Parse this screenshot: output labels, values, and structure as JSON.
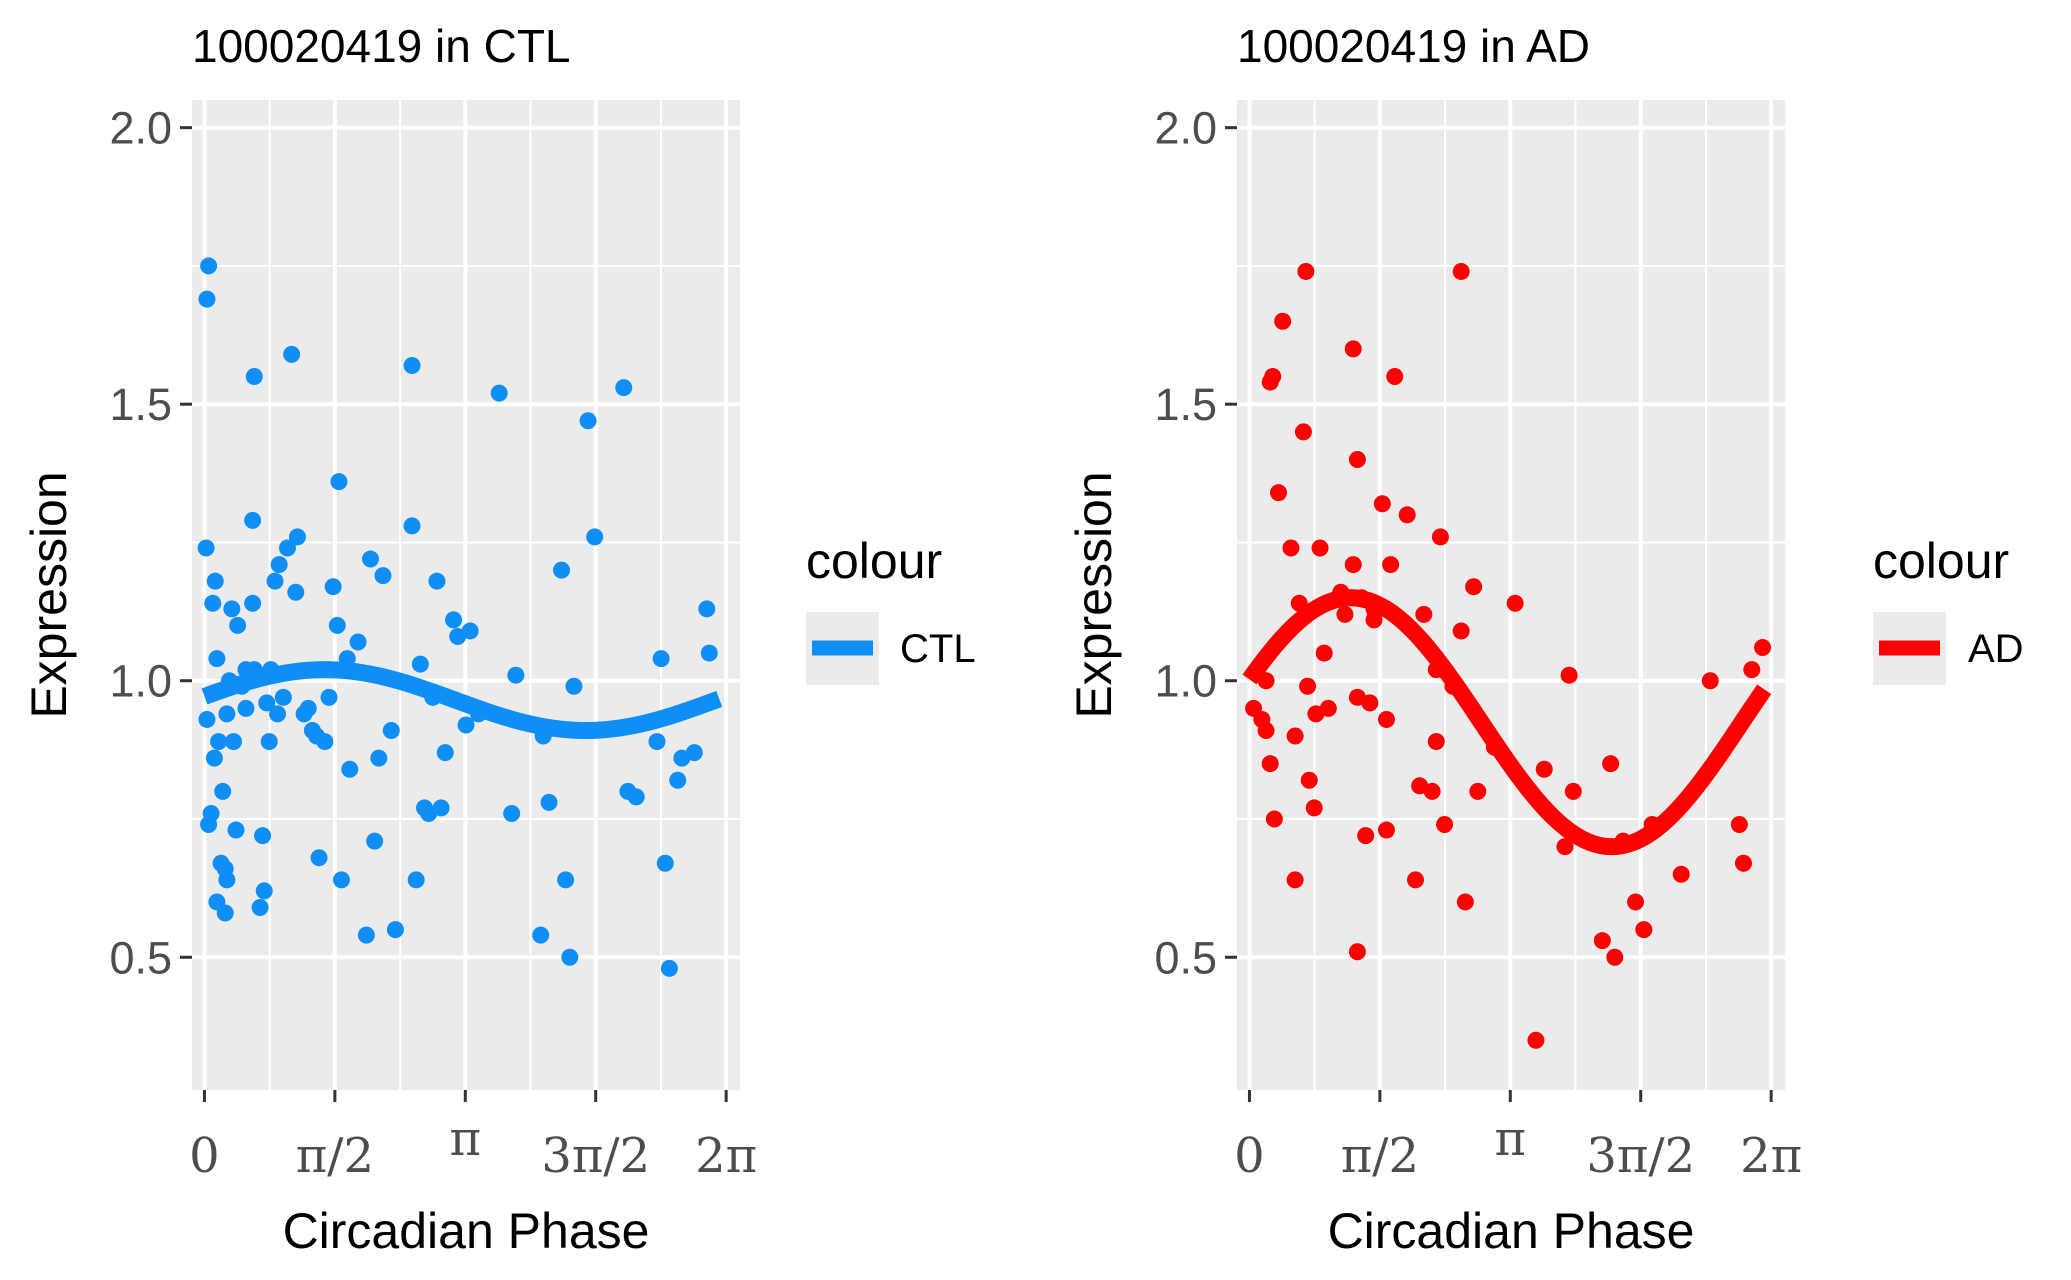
{
  "chart_data": [
    {
      "type": "scatter",
      "title": "100020419 in CTL",
      "xlabel": "Circadian Phase",
      "ylabel": "Expression",
      "xlim": [
        -0.15,
        6.45
      ],
      "ylim": [
        0.26,
        2.05
      ],
      "x_ticks": [
        0,
        1.5708,
        3.1416,
        4.7124,
        6.2832
      ],
      "x_tick_labels": [
        "0",
        "π/2",
        "π",
        "3π/2",
        "2π"
      ],
      "y_ticks": [
        0.5,
        1.0,
        1.5,
        2.0
      ],
      "y_tick_labels": [
        "0.5",
        "1.0",
        "1.5",
        "2.0"
      ],
      "grid": true,
      "legend": {
        "title": "colour",
        "label": "CTL",
        "position": "right"
      },
      "color": "#0f8ff5",
      "fit": {
        "mesor": 0.965,
        "amplitude": 0.055,
        "acrophase": 1.45
      },
      "points": [
        [
          0.05,
          1.75
        ],
        [
          0.03,
          1.69
        ],
        [
          0.02,
          1.24
        ],
        [
          0.03,
          0.93
        ],
        [
          0.05,
          0.74
        ],
        [
          0.08,
          0.76
        ],
        [
          0.1,
          1.14
        ],
        [
          0.13,
          1.18
        ],
        [
          0.15,
          1.04
        ],
        [
          0.17,
          0.89
        ],
        [
          0.12,
          0.86
        ],
        [
          0.2,
          0.67
        ],
        [
          0.15,
          0.6
        ],
        [
          0.25,
          0.58
        ],
        [
          0.27,
          0.64
        ],
        [
          0.25,
          0.66
        ],
        [
          0.22,
          0.8
        ],
        [
          0.27,
          0.94
        ],
        [
          0.3,
          1.0
        ],
        [
          0.33,
          1.13
        ],
        [
          0.35,
          0.89
        ],
        [
          0.38,
          0.73
        ],
        [
          0.4,
          1.1
        ],
        [
          0.45,
          0.99
        ],
        [
          0.5,
          1.02
        ],
        [
          0.5,
          0.95
        ],
        [
          0.58,
          1.14
        ],
        [
          0.58,
          1.29
        ],
        [
          0.6,
          1.55
        ],
        [
          0.6,
          1.02
        ],
        [
          0.67,
          0.59
        ],
        [
          0.7,
          0.72
        ],
        [
          0.72,
          0.62
        ],
        [
          0.75,
          0.96
        ],
        [
          0.78,
          0.89
        ],
        [
          0.8,
          1.02
        ],
        [
          0.85,
          1.18
        ],
        [
          0.88,
          0.94
        ],
        [
          0.9,
          1.21
        ],
        [
          0.95,
          0.97
        ],
        [
          1.0,
          1.24
        ],
        [
          1.05,
          1.59
        ],
        [
          1.1,
          1.16
        ],
        [
          1.12,
          1.26
        ],
        [
          1.2,
          0.94
        ],
        [
          1.25,
          0.95
        ],
        [
          1.3,
          0.91
        ],
        [
          1.35,
          0.9
        ],
        [
          1.38,
          0.68
        ],
        [
          1.45,
          0.89
        ],
        [
          1.5,
          0.97
        ],
        [
          1.55,
          1.17
        ],
        [
          1.6,
          1.1
        ],
        [
          1.62,
          1.36
        ],
        [
          1.65,
          0.64
        ],
        [
          1.72,
          1.04
        ],
        [
          1.75,
          0.84
        ],
        [
          1.85,
          1.07
        ],
        [
          1.95,
          0.54
        ],
        [
          2.0,
          1.22
        ],
        [
          2.05,
          0.71
        ],
        [
          2.1,
          0.86
        ],
        [
          2.15,
          1.19
        ],
        [
          2.25,
          0.91
        ],
        [
          2.3,
          0.55
        ],
        [
          2.5,
          1.57
        ],
        [
          2.5,
          1.28
        ],
        [
          2.55,
          0.64
        ],
        [
          2.6,
          1.03
        ],
        [
          2.65,
          0.77
        ],
        [
          2.7,
          0.76
        ],
        [
          2.75,
          0.97
        ],
        [
          2.8,
          1.18
        ],
        [
          2.85,
          0.77
        ],
        [
          2.9,
          0.87
        ],
        [
          3.0,
          1.11
        ],
        [
          3.05,
          1.08
        ],
        [
          3.15,
          0.92
        ],
        [
          3.2,
          1.09
        ],
        [
          3.3,
          0.94
        ],
        [
          3.55,
          1.52
        ],
        [
          3.75,
          1.01
        ],
        [
          3.7,
          0.76
        ],
        [
          4.05,
          0.54
        ],
        [
          4.08,
          0.9
        ],
        [
          4.15,
          0.78
        ],
        [
          4.3,
          1.2
        ],
        [
          4.35,
          0.64
        ],
        [
          4.45,
          0.99
        ],
        [
          4.4,
          0.5
        ],
        [
          4.62,
          1.47
        ],
        [
          4.7,
          1.26
        ],
        [
          5.05,
          1.53
        ],
        [
          5.2,
          0.79
        ],
        [
          5.1,
          0.8
        ],
        [
          5.5,
          1.04
        ],
        [
          5.55,
          0.67
        ],
        [
          5.45,
          0.89
        ],
        [
          5.6,
          0.48
        ],
        [
          5.75,
          0.86
        ],
        [
          5.7,
          0.82
        ],
        [
          5.9,
          0.87
        ],
        [
          6.05,
          1.13
        ],
        [
          6.08,
          1.05
        ]
      ]
    },
    {
      "type": "scatter",
      "title": "100020419 in AD",
      "xlabel": "Circadian Phase",
      "ylabel": "Expression",
      "xlim": [
        -0.15,
        6.45
      ],
      "ylim": [
        0.26,
        2.05
      ],
      "x_ticks": [
        0,
        1.5708,
        3.1416,
        4.7124,
        6.2832
      ],
      "x_tick_labels": [
        "0",
        "π/2",
        "π",
        "3π/2",
        "2π"
      ],
      "y_ticks": [
        0.5,
        1.0,
        1.5,
        2.0
      ],
      "y_tick_labels": [
        "0.5",
        "1.0",
        "1.5",
        "2.0"
      ],
      "grid": true,
      "legend": {
        "title": "colour",
        "label": "AD",
        "position": "right"
      },
      "color": "#ff0000",
      "fit": {
        "mesor": 0.925,
        "amplitude": 0.225,
        "acrophase": 1.22
      },
      "points": [
        [
          0.05,
          0.95
        ],
        [
          0.15,
          0.93
        ],
        [
          0.2,
          0.91
        ],
        [
          0.2,
          1.0
        ],
        [
          0.25,
          0.85
        ],
        [
          0.3,
          0.75
        ],
        [
          0.25,
          1.54
        ],
        [
          0.28,
          1.55
        ],
        [
          0.35,
          1.34
        ],
        [
          0.4,
          1.65
        ],
        [
          0.5,
          1.24
        ],
        [
          0.55,
          0.9
        ],
        [
          0.55,
          0.64
        ],
        [
          0.6,
          1.14
        ],
        [
          0.65,
          1.45
        ],
        [
          0.68,
          1.74
        ],
        [
          0.7,
          0.99
        ],
        [
          0.72,
          0.82
        ],
        [
          0.78,
          0.77
        ],
        [
          0.8,
          0.94
        ],
        [
          0.85,
          1.24
        ],
        [
          0.9,
          1.05
        ],
        [
          0.95,
          0.95
        ],
        [
          1.1,
          1.16
        ],
        [
          1.15,
          1.12
        ],
        [
          1.25,
          1.21
        ],
        [
          1.25,
          1.6
        ],
        [
          1.3,
          0.97
        ],
        [
          1.3,
          1.4
        ],
        [
          1.3,
          0.51
        ],
        [
          1.35,
          1.15
        ],
        [
          1.4,
          0.72
        ],
        [
          1.45,
          0.96
        ],
        [
          1.5,
          1.11
        ],
        [
          1.5,
          1.13
        ],
        [
          1.6,
          1.32
        ],
        [
          1.65,
          0.73
        ],
        [
          1.65,
          0.93
        ],
        [
          1.7,
          1.21
        ],
        [
          1.75,
          1.55
        ],
        [
          1.9,
          1.3
        ],
        [
          2.0,
          0.64
        ],
        [
          2.05,
          0.81
        ],
        [
          2.1,
          1.12
        ],
        [
          2.2,
          0.8
        ],
        [
          2.25,
          1.02
        ],
        [
          2.25,
          0.89
        ],
        [
          2.3,
          1.26
        ],
        [
          2.35,
          0.74
        ],
        [
          2.45,
          0.99
        ],
        [
          2.55,
          1.74
        ],
        [
          2.55,
          1.09
        ],
        [
          2.6,
          0.6
        ],
        [
          2.7,
          1.17
        ],
        [
          2.75,
          0.8
        ],
        [
          2.95,
          0.88
        ],
        [
          3.2,
          1.14
        ],
        [
          3.45,
          0.35
        ],
        [
          3.55,
          0.84
        ],
        [
          3.8,
          0.7
        ],
        [
          3.85,
          1.01
        ],
        [
          3.9,
          0.8
        ],
        [
          4.25,
          0.53
        ],
        [
          4.35,
          0.85
        ],
        [
          4.4,
          0.5
        ],
        [
          4.5,
          0.71
        ],
        [
          4.65,
          0.6
        ],
        [
          4.75,
          0.55
        ],
        [
          4.85,
          0.74
        ],
        [
          5.2,
          0.65
        ],
        [
          5.55,
          1.0
        ],
        [
          5.9,
          0.74
        ],
        [
          5.95,
          0.67
        ],
        [
          6.05,
          1.02
        ],
        [
          6.18,
          1.06
        ]
      ]
    }
  ]
}
